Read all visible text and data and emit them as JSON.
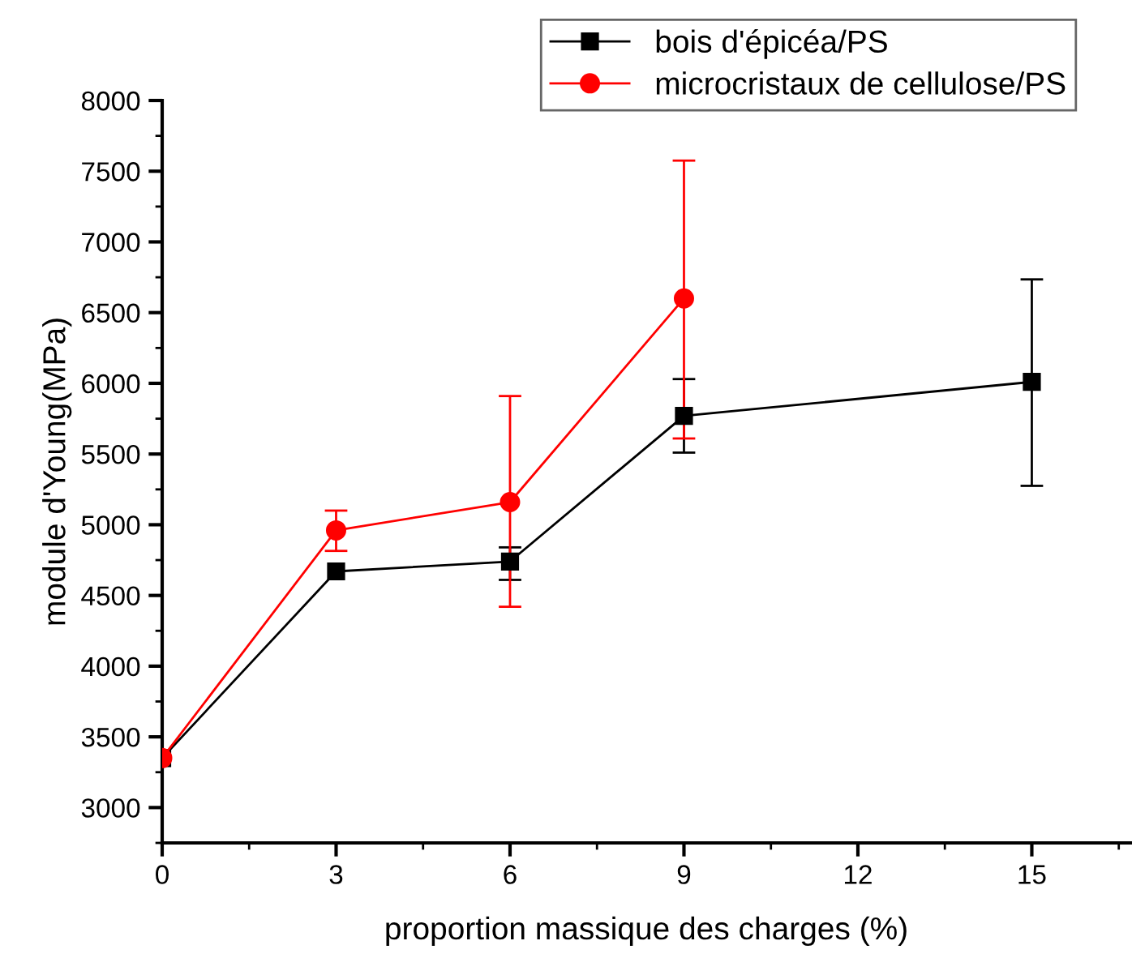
{
  "chart_data": {
    "type": "line",
    "xlabel": "proportion massique des charges (%)",
    "ylabel": "module d'Young(MPa)",
    "xlim": [
      0,
      16.7
    ],
    "xticks": [
      0,
      3,
      6,
      9,
      12,
      15
    ],
    "ylim": [
      2750,
      8000
    ],
    "yticks": [
      3000,
      3500,
      4000,
      4500,
      5000,
      5500,
      6000,
      6500,
      7000,
      7500,
      8000
    ],
    "legend": "top right",
    "grid": false,
    "series": [
      {
        "name": "bois d'épicéa/PS",
        "color": "#000000",
        "marker": "square",
        "x": [
          0,
          3,
          6,
          9,
          15
        ],
        "values": [
          3350,
          4670,
          4740,
          5770,
          6010
        ],
        "errors": [
          null,
          null,
          [
            4610,
            4840
          ],
          [
            5510,
            6030
          ],
          [
            5275,
            6735
          ]
        ]
      },
      {
        "name": "microcristaux de cellulose/PS",
        "color": "#ff0000",
        "marker": "circle",
        "x": [
          0,
          3,
          6,
          9
        ],
        "values": [
          3350,
          4960,
          5160,
          6600
        ],
        "errors": [
          null,
          [
            4815,
            5100
          ],
          [
            4420,
            5910
          ],
          [
            5610,
            7575
          ]
        ]
      }
    ]
  }
}
